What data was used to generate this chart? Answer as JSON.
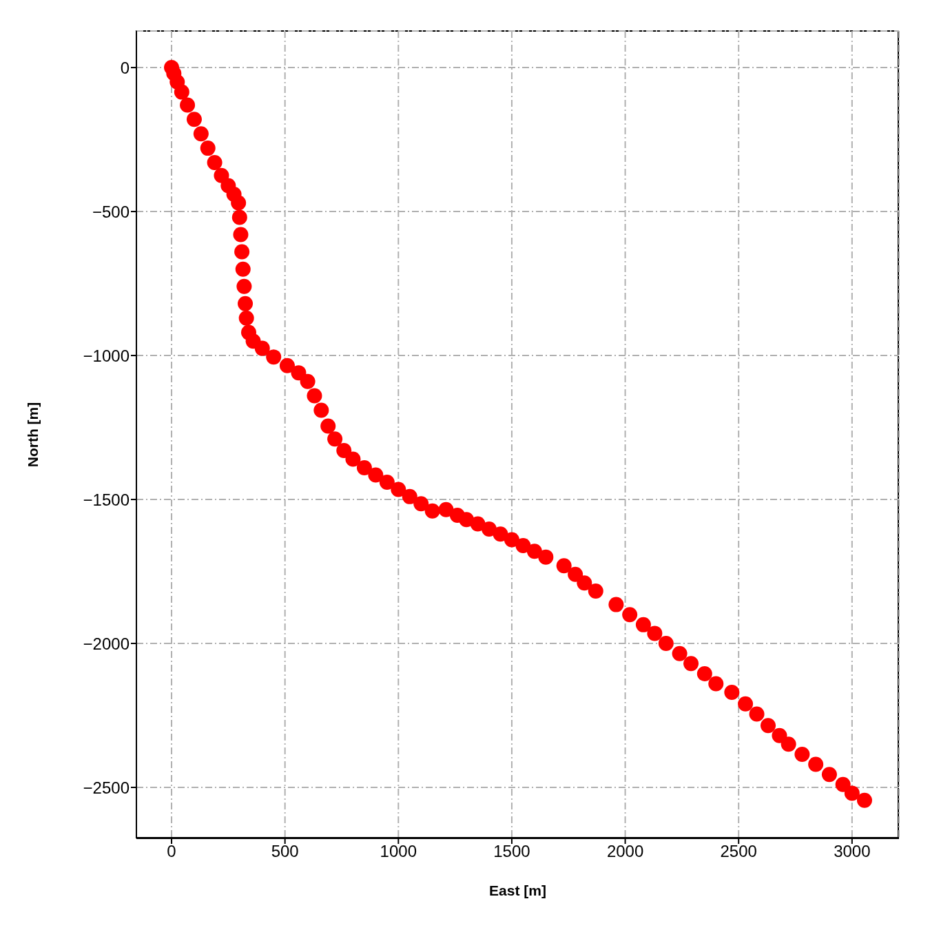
{
  "chart_data": {
    "type": "scatter",
    "xlabel": "East [m]",
    "ylabel": "North [m]",
    "x": [
      0,
      10,
      25,
      45,
      70,
      100,
      130,
      160,
      190,
      220,
      250,
      275,
      295,
      300,
      305,
      310,
      315,
      320,
      325,
      330,
      340,
      360,
      400,
      450,
      510,
      560,
      600,
      630,
      660,
      690,
      720,
      760,
      800,
      850,
      900,
      950,
      1000,
      1050,
      1100,
      1150,
      1210,
      1260,
      1300,
      1350,
      1400,
      1450,
      1500,
      1550,
      1600,
      1650,
      1730,
      1780,
      1820,
      1870,
      1960,
      2020,
      2080,
      2130,
      2180,
      2240,
      2290,
      2350,
      2400,
      2470,
      2530,
      2580,
      2630,
      2680,
      2720,
      2780,
      2840,
      2900,
      2960,
      3000,
      3055
    ],
    "series": [
      {
        "color": "#ff0000",
        "values": [
          0,
          -20,
          -50,
          -85,
          -130,
          -180,
          -230,
          -280,
          -330,
          -375,
          -410,
          -440,
          -470,
          -520,
          -580,
          -640,
          -700,
          -760,
          -820,
          -870,
          -920,
          -950,
          -975,
          -1005,
          -1035,
          -1060,
          -1090,
          -1140,
          -1190,
          -1245,
          -1290,
          -1330,
          -1360,
          -1390,
          -1415,
          -1440,
          -1465,
          -1490,
          -1515,
          -1540,
          -1535,
          -1555,
          -1570,
          -1585,
          -1603,
          -1620,
          -1640,
          -1660,
          -1680,
          -1700,
          -1730,
          -1760,
          -1790,
          -1818,
          -1865,
          -1900,
          -1935,
          -1965,
          -2000,
          -2035,
          -2070,
          -2105,
          -2140,
          -2170,
          -2210,
          -2245,
          -2285,
          -2320,
          -2350,
          -2385,
          -2420,
          -2455,
          -2490,
          -2520,
          -2545
        ]
      }
    ],
    "xlim": [
      -155,
      3207
    ],
    "xticks": [
      0,
      500,
      1000,
      1500,
      2000,
      2500,
      3000
    ],
    "ylim": [
      -2677,
      127
    ],
    "yticks": [
      {
        "value": 0,
        "label": "0"
      },
      {
        "value": -500,
        "label": "−500"
      },
      {
        "value": -1000,
        "label": "−1000"
      },
      {
        "value": -1500,
        "label": "−1500"
      },
      {
        "value": -2000,
        "label": "−2000"
      },
      {
        "value": -2500,
        "label": "−2500"
      }
    ],
    "grid": true,
    "marker": "circle"
  }
}
